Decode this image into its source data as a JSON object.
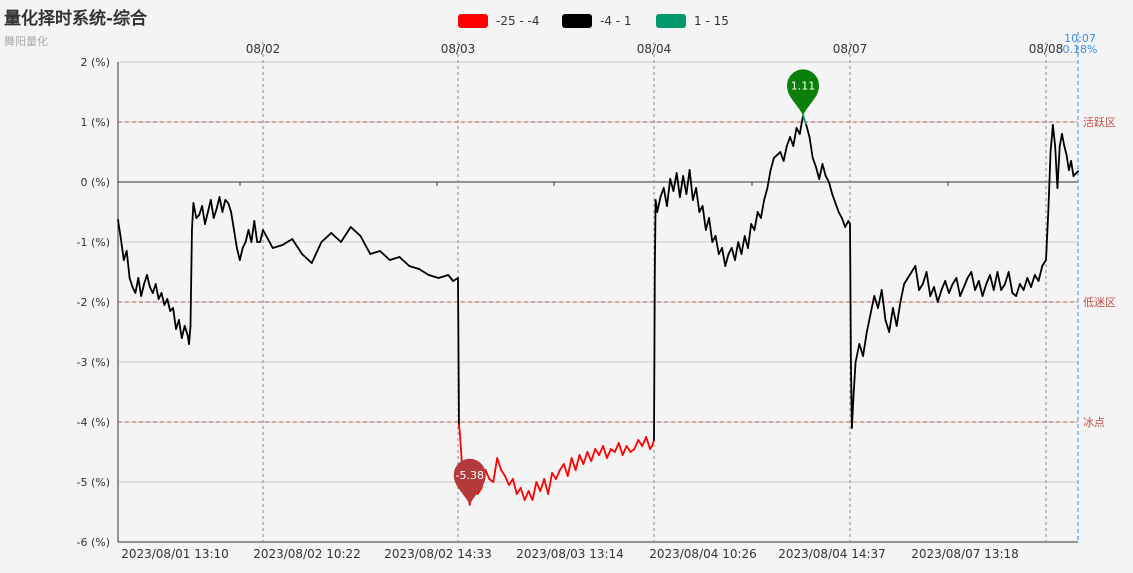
{
  "header": {
    "title": "量化择时系统-综合",
    "subtitle": "舞阳量化"
  },
  "legend": [
    {
      "label": "-25 - -4",
      "color": "#ff0000"
    },
    {
      "label": "-4 - 1",
      "color": "#000000"
    },
    {
      "label": "1 - 15",
      "color": "#00996b"
    }
  ],
  "chart_data": {
    "type": "line",
    "title": "量化择时系统-综合",
    "subtitle": "舞阳量化",
    "y_tick_labels": [
      "2 (%)",
      "1 (%)",
      "0 (%)",
      "-1 (%)",
      "-2 (%)",
      "-3 (%)",
      "-4 (%)",
      "-5 (%)",
      "-6 (%)"
    ],
    "ylim": [
      -6,
      2
    ],
    "x_top_labels": [
      "08/02",
      "08/03",
      "08/04",
      "08/07",
      "08/08"
    ],
    "x_bottom_labels": [
      "2023/08/01 13:10",
      "2023/08/02 10:22",
      "2023/08/02 14:33",
      "2023/08/03 13:14",
      "2023/08/04 10:26",
      "2023/08/04 14:37",
      "2023/08/07 13:18"
    ],
    "reference_lines": [
      {
        "value": 1,
        "label": "活跃区"
      },
      {
        "value": -2,
        "label": "低迷区"
      },
      {
        "value": -4,
        "label": "冰点"
      }
    ],
    "markers": [
      {
        "label": "1.11",
        "value": 1.11,
        "color": "#0a7f0a",
        "kind": "max"
      },
      {
        "label": "-5.38",
        "value": -5.38,
        "color": "#b33a3a",
        "kind": "min"
      }
    ],
    "current": {
      "time": "10:07",
      "value": "0.18%"
    },
    "color_bands": [
      {
        "range": [
          -25,
          -4
        ],
        "color": "#ff0000"
      },
      {
        "range": [
          -4,
          1
        ],
        "color": "#000000"
      },
      {
        "range": [
          1,
          15
        ],
        "color": "#00996b"
      }
    ],
    "series": [
      {
        "points": [
          [
            0,
            -0.63
          ],
          [
            0.02,
            -0.95
          ],
          [
            0.04,
            -1.3
          ],
          [
            0.06,
            -1.15
          ],
          [
            0.08,
            -1.6
          ],
          [
            0.1,
            -1.75
          ],
          [
            0.12,
            -1.85
          ],
          [
            0.14,
            -1.6
          ],
          [
            0.16,
            -1.9
          ],
          [
            0.18,
            -1.7
          ],
          [
            0.2,
            -1.55
          ],
          [
            0.22,
            -1.75
          ],
          [
            0.24,
            -1.85
          ],
          [
            0.26,
            -1.7
          ],
          [
            0.28,
            -1.95
          ],
          [
            0.3,
            -1.85
          ],
          [
            0.32,
            -2.05
          ],
          [
            0.34,
            -1.95
          ],
          [
            0.36,
            -2.15
          ],
          [
            0.38,
            -2.1
          ],
          [
            0.4,
            -2.45
          ],
          [
            0.42,
            -2.3
          ],
          [
            0.44,
            -2.6
          ],
          [
            0.46,
            -2.4
          ],
          [
            0.48,
            -2.55
          ],
          [
            0.49,
            -2.7
          ],
          [
            0.5,
            -2.4
          ],
          [
            0.51,
            -0.8
          ],
          [
            0.52,
            -0.35
          ],
          [
            0.54,
            -0.6
          ],
          [
            0.56,
            -0.55
          ],
          [
            0.58,
            -0.4
          ],
          [
            0.6,
            -0.7
          ],
          [
            0.62,
            -0.5
          ],
          [
            0.64,
            -0.3
          ],
          [
            0.66,
            -0.6
          ],
          [
            0.68,
            -0.45
          ],
          [
            0.7,
            -0.25
          ],
          [
            0.72,
            -0.5
          ],
          [
            0.74,
            -0.3
          ],
          [
            0.76,
            -0.35
          ],
          [
            0.78,
            -0.5
          ],
          [
            0.8,
            -0.8
          ],
          [
            0.82,
            -1.1
          ],
          [
            0.84,
            -1.3
          ],
          [
            0.86,
            -1.1
          ],
          [
            0.88,
            -1.0
          ],
          [
            0.9,
            -0.8
          ],
          [
            0.92,
            -1.0
          ],
          [
            0.94,
            -0.65
          ],
          [
            0.96,
            -1.0
          ],
          [
            0.98,
            -1.0
          ],
          [
            1.0,
            -0.8
          ],
          [
            1.02,
            -1.1
          ],
          [
            1.04,
            -1.05
          ],
          [
            1.06,
            -0.95
          ],
          [
            1.08,
            -1.2
          ],
          [
            1.1,
            -1.35
          ],
          [
            1.12,
            -1.0
          ],
          [
            1.14,
            -0.85
          ],
          [
            1.16,
            -1.0
          ],
          [
            1.18,
            -0.75
          ],
          [
            1.2,
            -0.9
          ],
          [
            1.22,
            -1.2
          ],
          [
            1.24,
            -1.15
          ],
          [
            1.26,
            -1.3
          ],
          [
            1.28,
            -1.25
          ],
          [
            1.3,
            -1.4
          ],
          [
            1.32,
            -1.45
          ],
          [
            1.34,
            -1.55
          ],
          [
            1.36,
            -1.6
          ],
          [
            1.38,
            -1.55
          ],
          [
            1.39,
            -1.65
          ],
          [
            1.4,
            -1.6
          ],
          [
            1.405,
            -4.05
          ],
          [
            1.41,
            -4.2
          ],
          [
            1.42,
            -4.7
          ],
          [
            1.44,
            -5.1
          ],
          [
            1.46,
            -5.38
          ],
          [
            1.48,
            -5.0
          ],
          [
            1.5,
            -5.2
          ],
          [
            1.52,
            -5.1
          ],
          [
            1.54,
            -4.8
          ],
          [
            1.56,
            -4.95
          ],
          [
            1.58,
            -5.0
          ],
          [
            1.6,
            -4.6
          ],
          [
            1.62,
            -4.8
          ],
          [
            1.64,
            -4.9
          ],
          [
            1.66,
            -5.05
          ],
          [
            1.68,
            -4.95
          ],
          [
            1.7,
            -5.2
          ],
          [
            1.72,
            -5.1
          ],
          [
            1.74,
            -5.3
          ],
          [
            1.76,
            -5.15
          ],
          [
            1.78,
            -5.3
          ],
          [
            1.8,
            -5.0
          ],
          [
            1.82,
            -5.15
          ],
          [
            1.84,
            -4.95
          ],
          [
            1.86,
            -5.2
          ],
          [
            1.88,
            -4.85
          ],
          [
            1.9,
            -4.95
          ],
          [
            1.92,
            -4.8
          ],
          [
            1.94,
            -4.7
          ],
          [
            1.96,
            -4.9
          ],
          [
            1.98,
            -4.6
          ],
          [
            2.0,
            -4.8
          ],
          [
            2.02,
            -4.55
          ],
          [
            2.04,
            -4.7
          ],
          [
            2.06,
            -4.5
          ],
          [
            2.08,
            -4.65
          ],
          [
            2.1,
            -4.45
          ],
          [
            2.12,
            -4.55
          ],
          [
            2.14,
            -4.4
          ],
          [
            2.16,
            -4.6
          ],
          [
            2.18,
            -4.45
          ],
          [
            2.2,
            -4.5
          ],
          [
            2.22,
            -4.35
          ],
          [
            2.24,
            -4.55
          ],
          [
            2.26,
            -4.4
          ],
          [
            2.28,
            -4.5
          ],
          [
            2.3,
            -4.45
          ],
          [
            2.32,
            -4.3
          ],
          [
            2.34,
            -4.4
          ],
          [
            2.36,
            -4.25
          ],
          [
            2.38,
            -4.45
          ],
          [
            2.39,
            -4.4
          ],
          [
            2.4,
            -4.3
          ],
          [
            2.405,
            -1.5
          ],
          [
            2.41,
            -0.3
          ],
          [
            2.42,
            -0.5
          ],
          [
            2.44,
            -0.25
          ],
          [
            2.46,
            -0.1
          ],
          [
            2.48,
            -0.4
          ],
          [
            2.5,
            0.05
          ],
          [
            2.52,
            -0.15
          ],
          [
            2.54,
            0.15
          ],
          [
            2.56,
            -0.25
          ],
          [
            2.58,
            0.1
          ],
          [
            2.6,
            -0.2
          ],
          [
            2.62,
            0.2
          ],
          [
            2.64,
            -0.3
          ],
          [
            2.66,
            -0.1
          ],
          [
            2.68,
            -0.5
          ],
          [
            2.7,
            -0.4
          ],
          [
            2.72,
            -0.8
          ],
          [
            2.74,
            -0.6
          ],
          [
            2.76,
            -1.0
          ],
          [
            2.78,
            -0.9
          ],
          [
            2.8,
            -1.2
          ],
          [
            2.82,
            -1.1
          ],
          [
            2.84,
            -1.4
          ],
          [
            2.86,
            -1.2
          ],
          [
            2.88,
            -1.1
          ],
          [
            2.9,
            -1.3
          ],
          [
            2.92,
            -1.0
          ],
          [
            2.94,
            -1.2
          ],
          [
            2.96,
            -0.9
          ],
          [
            2.98,
            -1.1
          ],
          [
            3.0,
            -0.7
          ],
          [
            3.02,
            -0.8
          ],
          [
            3.04,
            -0.5
          ],
          [
            3.06,
            -0.6
          ],
          [
            3.08,
            -0.3
          ],
          [
            3.1,
            -0.1
          ],
          [
            3.12,
            0.2
          ],
          [
            3.14,
            0.4
          ],
          [
            3.16,
            0.45
          ],
          [
            3.18,
            0.5
          ],
          [
            3.2,
            0.35
          ],
          [
            3.22,
            0.6
          ],
          [
            3.24,
            0.75
          ],
          [
            3.26,
            0.6
          ],
          [
            3.28,
            0.9
          ],
          [
            3.3,
            0.8
          ],
          [
            3.32,
            1.11
          ],
          [
            3.34,
            0.95
          ],
          [
            3.36,
            0.75
          ],
          [
            3.38,
            0.4
          ],
          [
            3.4,
            0.25
          ],
          [
            3.42,
            0.05
          ],
          [
            3.44,
            0.3
          ],
          [
            3.46,
            0.1
          ],
          [
            3.48,
            0.0
          ],
          [
            3.5,
            -0.2
          ],
          [
            3.52,
            -0.35
          ],
          [
            3.54,
            -0.5
          ],
          [
            3.56,
            -0.6
          ],
          [
            3.58,
            -0.75
          ],
          [
            3.6,
            -0.65
          ],
          [
            3.61,
            -0.7
          ],
          [
            3.615,
            -3.0
          ],
          [
            3.62,
            -4.1
          ],
          [
            3.63,
            -3.5
          ],
          [
            3.64,
            -3.0
          ],
          [
            3.66,
            -2.7
          ],
          [
            3.68,
            -2.9
          ],
          [
            3.7,
            -2.5
          ],
          [
            3.72,
            -2.2
          ],
          [
            3.74,
            -1.9
          ],
          [
            3.76,
            -2.1
          ],
          [
            3.78,
            -1.8
          ],
          [
            3.8,
            -2.3
          ],
          [
            3.82,
            -2.5
          ],
          [
            3.84,
            -2.1
          ],
          [
            3.86,
            -2.4
          ],
          [
            3.88,
            -2.0
          ],
          [
            3.9,
            -1.7
          ],
          [
            3.92,
            -1.6
          ],
          [
            3.94,
            -1.5
          ],
          [
            3.96,
            -1.4
          ],
          [
            3.98,
            -1.8
          ],
          [
            4.0,
            -1.7
          ],
          [
            4.02,
            -1.5
          ],
          [
            4.04,
            -1.9
          ],
          [
            4.06,
            -1.75
          ],
          [
            4.08,
            -2.0
          ],
          [
            4.1,
            -1.8
          ],
          [
            4.12,
            -1.65
          ],
          [
            4.14,
            -1.85
          ],
          [
            4.16,
            -1.7
          ],
          [
            4.18,
            -1.6
          ],
          [
            4.2,
            -1.9
          ],
          [
            4.22,
            -1.75
          ],
          [
            4.24,
            -1.6
          ],
          [
            4.26,
            -1.5
          ],
          [
            4.28,
            -1.8
          ],
          [
            4.3,
            -1.65
          ],
          [
            4.32,
            -1.9
          ],
          [
            4.34,
            -1.7
          ],
          [
            4.36,
            -1.55
          ],
          [
            4.38,
            -1.8
          ],
          [
            4.4,
            -1.5
          ],
          [
            4.42,
            -1.8
          ],
          [
            4.44,
            -1.7
          ],
          [
            4.46,
            -1.5
          ],
          [
            4.48,
            -1.85
          ],
          [
            4.5,
            -1.9
          ],
          [
            4.52,
            -1.7
          ],
          [
            4.54,
            -1.8
          ],
          [
            4.56,
            -1.6
          ],
          [
            4.58,
            -1.75
          ],
          [
            4.6,
            -1.55
          ],
          [
            4.62,
            -1.65
          ],
          [
            4.64,
            -1.4
          ],
          [
            4.66,
            -1.3
          ],
          [
            4.67,
            -0.5
          ],
          [
            4.68,
            0.5
          ],
          [
            4.69,
            0.95
          ],
          [
            4.7,
            0.6
          ],
          [
            4.71,
            -0.1
          ],
          [
            4.72,
            0.6
          ],
          [
            4.73,
            0.8
          ],
          [
            4.74,
            0.6
          ],
          [
            4.75,
            0.45
          ],
          [
            4.76,
            0.2
          ],
          [
            4.77,
            0.35
          ],
          [
            4.78,
            0.1
          ],
          [
            4.8,
            0.18
          ]
        ]
      }
    ]
  }
}
